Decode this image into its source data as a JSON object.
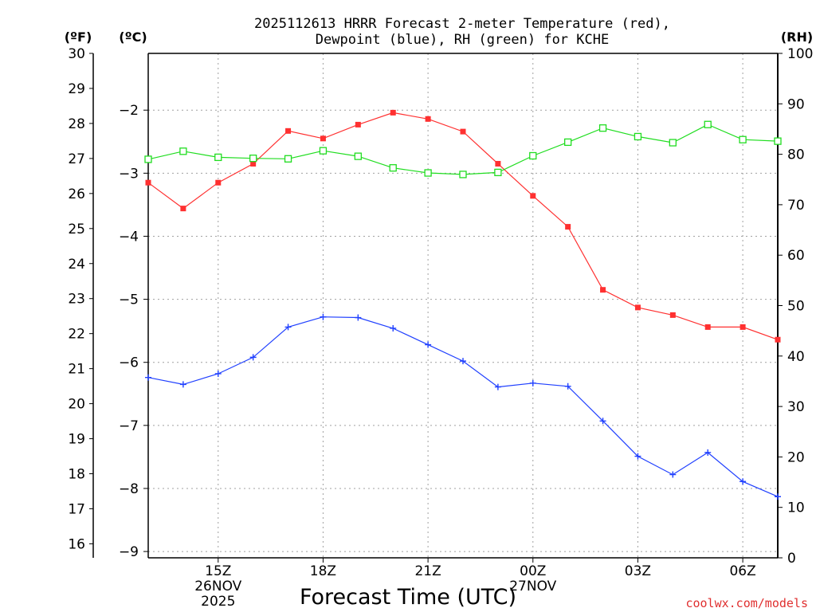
{
  "chart_data": {
    "type": "line",
    "title_line1": "2025112613 HRRR Forecast 2-meter Temperature (red),",
    "title_line2": "Dewpoint (blue), RH (green) for KCHE",
    "xlabel": "Forecast Time (UTC)",
    "credit": "coolwx.com/models",
    "units": {
      "fahrenheit": "(ºF)",
      "celsius": "(ºC)",
      "rh": "(RH)"
    },
    "x_hours": [
      13,
      14,
      15,
      16,
      17,
      18,
      19,
      20,
      21,
      22,
      23,
      24,
      25,
      26,
      27,
      28,
      29,
      30,
      31
    ],
    "x_range": [
      13,
      31
    ],
    "x_ticks": [
      {
        "hour": 15,
        "lines": [
          "15Z",
          "26NOV",
          "2025"
        ]
      },
      {
        "hour": 18,
        "lines": [
          "18Z"
        ]
      },
      {
        "hour": 21,
        "lines": [
          "21Z"
        ]
      },
      {
        "hour": 24,
        "lines": [
          "00Z",
          "27NOV"
        ]
      },
      {
        "hour": 27,
        "lines": [
          "03Z"
        ]
      },
      {
        "hour": 30,
        "lines": [
          "06Z"
        ]
      }
    ],
    "celsius_axis": {
      "range": [
        -9.1,
        -1.1
      ],
      "ticks": [
        -9,
        -8,
        -7,
        -6,
        -5,
        -4,
        -3,
        -2
      ],
      "labels": [
        "−9",
        "−8",
        "−7",
        "−6",
        "−5",
        "−4",
        "−3",
        "−2"
      ]
    },
    "fahrenheit_axis": {
      "range": [
        15.6,
        30
      ],
      "ticks": [
        16,
        17,
        18,
        19,
        20,
        21,
        22,
        23,
        24,
        25,
        26,
        27,
        28,
        29,
        30
      ]
    },
    "rh_axis": {
      "range": [
        0,
        100
      ],
      "ticks": [
        0,
        10,
        20,
        30,
        40,
        50,
        60,
        70,
        80,
        90,
        100
      ]
    },
    "series": [
      {
        "name": "Temperature",
        "unit": "C",
        "color": "#ff3030",
        "marker": "filled-square",
        "values": [
          -3.15,
          -3.56,
          -3.15,
          -2.85,
          -2.33,
          -2.45,
          -2.23,
          -2.04,
          -2.14,
          -2.34,
          -2.85,
          -3.36,
          -3.85,
          -4.85,
          -5.13,
          -5.25,
          -5.44,
          -5.44,
          -5.64
        ]
      },
      {
        "name": "Dewpoint",
        "unit": "C",
        "color": "#2040ff",
        "marker": "plus",
        "values": [
          -6.24,
          -6.35,
          -6.18,
          -5.92,
          -5.44,
          -5.28,
          -5.29,
          -5.46,
          -5.72,
          -5.98,
          -6.39,
          -6.33,
          -6.38,
          -6.93,
          -7.49,
          -7.78,
          -7.43,
          -7.89,
          -8.13
        ]
      },
      {
        "name": "RH",
        "unit": "%",
        "color": "#20dd20",
        "marker": "open-square",
        "values": [
          79,
          80.6,
          79.4,
          79.2,
          79.1,
          80.7,
          79.6,
          77.3,
          76.3,
          76,
          76.4,
          79.7,
          82.4,
          85.2,
          83.5,
          82.3,
          85.9,
          82.9,
          82.6
        ]
      }
    ]
  }
}
